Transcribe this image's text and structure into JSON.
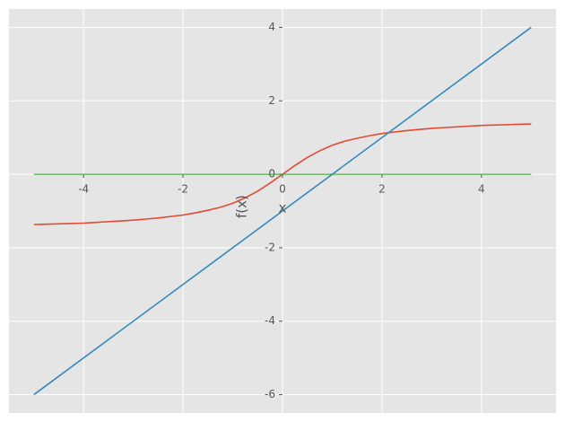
{
  "chart_data": {
    "type": "line",
    "x_label": "x",
    "y_label": "f(x)",
    "series": [
      {
        "color": "#e24a33",
        "x": [
          -5,
          -4.75,
          -4.5,
          -4.25,
          -4,
          -3.75,
          -3.5,
          -3.25,
          -3,
          -2.75,
          -2.5,
          -2.25,
          -2,
          -1.75,
          -1.5,
          -1.25,
          -1,
          -0.75,
          -0.5,
          -0.25,
          0,
          0.25,
          0.5,
          0.75,
          1,
          1.25,
          1.5,
          1.75,
          2,
          2.25,
          2.5,
          2.75,
          3,
          3.25,
          3.5,
          3.75,
          4,
          4.25,
          4.5,
          4.75,
          5
        ],
        "values": [
          -1.37,
          -1.36,
          -1.35,
          -1.34,
          -1.33,
          -1.31,
          -1.29,
          -1.27,
          -1.25,
          -1.22,
          -1.19,
          -1.15,
          -1.11,
          -1.05,
          -0.98,
          -0.9,
          -0.79,
          -0.64,
          -0.46,
          -0.24,
          0,
          0.24,
          0.46,
          0.64,
          0.79,
          0.9,
          0.98,
          1.05,
          1.11,
          1.15,
          1.19,
          1.22,
          1.25,
          1.27,
          1.29,
          1.31,
          1.33,
          1.34,
          1.35,
          1.36,
          1.37
        ]
      },
      {
        "color": "#348abd",
        "x": [
          -5,
          5
        ],
        "values": [
          -6,
          4
        ]
      },
      {
        "color": "#2ca02c",
        "x": [
          -5,
          5
        ],
        "values": [
          0,
          0
        ]
      }
    ],
    "xlim": [
      -5.5,
      5.5
    ],
    "ylim": [
      -6.5,
      4.5
    ],
    "xticks": [
      -4,
      -2,
      0,
      2,
      4
    ],
    "yticks": [
      -6,
      -4,
      -2,
      0,
      2,
      4
    ],
    "grid": true,
    "background": "#e5e5e5"
  }
}
